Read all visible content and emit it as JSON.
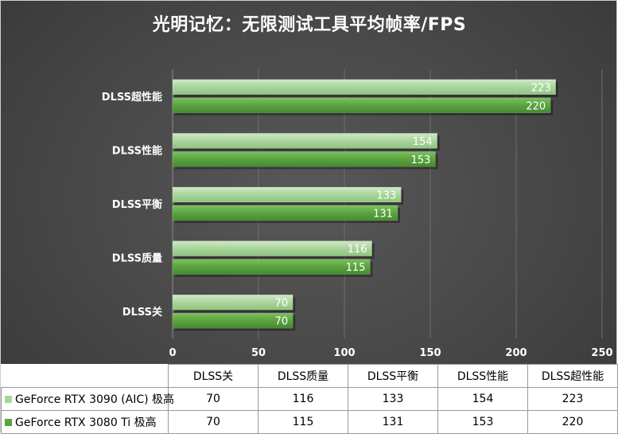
{
  "chart_data": {
    "type": "bar",
    "orientation": "horizontal",
    "title": "光明记忆：无限测试工具平均帧率/FPS",
    "categories": [
      "DLSS超性能",
      "DLSS性能",
      "DLSS平衡",
      "DLSS质量",
      "DLSS关"
    ],
    "series": [
      {
        "name": "GeForce RTX 3090 (AIC) 极高",
        "values": [
          223,
          154,
          133,
          116,
          70
        ],
        "color": "#a9d59b"
      },
      {
        "name": "GeForce RTX 3080 Ti 极高",
        "values": [
          220,
          153,
          131,
          115,
          70
        ],
        "color": "#5aa33f"
      }
    ],
    "xlim": [
      0,
      250
    ],
    "xticks": [
      "0",
      "50",
      "100",
      "150",
      "200",
      "250"
    ],
    "grid": true,
    "legend": "data-table-below"
  },
  "table": {
    "headers": [
      "DLSS关",
      "DLSS质量",
      "DLSS平衡",
      "DLSS性能",
      "DLSS超性能"
    ],
    "rows": [
      {
        "label": "GeForce RTX 3090 (AIC) 极高",
        "values": [
          "70",
          "116",
          "133",
          "154",
          "223"
        ]
      },
      {
        "label": "GeForce RTX 3080 Ti 极高",
        "values": [
          "70",
          "115",
          "131",
          "153",
          "220"
        ]
      }
    ]
  }
}
